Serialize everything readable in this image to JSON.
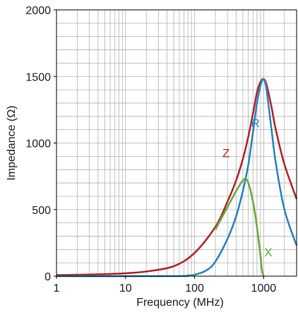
{
  "chart_data": {
    "type": "line",
    "title": "",
    "xlabel": "Frequency (MHz)",
    "ylabel": "Impedance (Ω)",
    "x_scale": "log",
    "xlim": [
      1,
      3000
    ],
    "ylim": [
      0,
      2000
    ],
    "grid": true,
    "x_ticks": [
      {
        "value": 1,
        "label": "1"
      },
      {
        "value": 10,
        "label": "10"
      },
      {
        "value": 100,
        "label": "100"
      },
      {
        "value": 1000,
        "label": "1000"
      }
    ],
    "y_ticks": [
      {
        "value": 0,
        "label": "0"
      },
      {
        "value": 500,
        "label": "500"
      },
      {
        "value": 1000,
        "label": "1000"
      },
      {
        "value": 1500,
        "label": "1500"
      },
      {
        "value": 2000,
        "label": "2000"
      }
    ],
    "series": [
      {
        "name": "Z",
        "color": "#b5282e",
        "points": [
          [
            1,
            8
          ],
          [
            2,
            10
          ],
          [
            5,
            15
          ],
          [
            10,
            22
          ],
          [
            20,
            35
          ],
          [
            50,
            75
          ],
          [
            100,
            175
          ],
          [
            200,
            370
          ],
          [
            300,
            560
          ],
          [
            400,
            720
          ],
          [
            500,
            880
          ],
          [
            600,
            1050
          ],
          [
            700,
            1220
          ],
          [
            800,
            1380
          ],
          [
            900,
            1460
          ],
          [
            1000,
            1480
          ],
          [
            1100,
            1440
          ],
          [
            1300,
            1270
          ],
          [
            1500,
            1100
          ],
          [
            2000,
            840
          ],
          [
            3000,
            580
          ]
        ]
      },
      {
        "name": "R",
        "color": "#2f86bd",
        "points": [
          [
            1,
            0
          ],
          [
            50,
            0
          ],
          [
            80,
            5
          ],
          [
            100,
            10
          ],
          [
            150,
            45
          ],
          [
            200,
            110
          ],
          [
            300,
            280
          ],
          [
            400,
            450
          ],
          [
            500,
            640
          ],
          [
            600,
            840
          ],
          [
            700,
            1080
          ],
          [
            800,
            1300
          ],
          [
            900,
            1430
          ],
          [
            1000,
            1480
          ],
          [
            1100,
            1400
          ],
          [
            1300,
            1100
          ],
          [
            1500,
            850
          ],
          [
            2000,
            500
          ],
          [
            3000,
            230
          ]
        ]
      },
      {
        "name": "X",
        "color": "#6aab3e",
        "points": [
          [
            200,
            350
          ],
          [
            300,
            520
          ],
          [
            400,
            640
          ],
          [
            500,
            720
          ],
          [
            550,
            730
          ],
          [
            600,
            700
          ],
          [
            700,
            560
          ],
          [
            800,
            370
          ],
          [
            900,
            150
          ],
          [
            950,
            40
          ],
          [
            1000,
            0
          ]
        ]
      }
    ]
  }
}
